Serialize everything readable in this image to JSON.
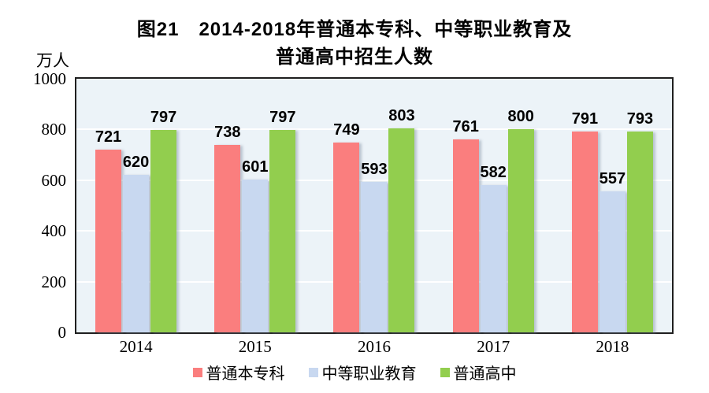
{
  "figure": {
    "title_line1": "图21　2014-2018年普通本专科、中等职业教育及",
    "title_line2": "普通高中招生人数",
    "unit_label": "万人"
  },
  "chart_data": {
    "type": "bar",
    "title": "图21 2014-2018年普通本专科、中等职业教育及普通高中招生人数",
    "ylabel": "万人",
    "xlabel": "",
    "categories": [
      "2014",
      "2015",
      "2016",
      "2017",
      "2018"
    ],
    "series": [
      {
        "name": "普通本专科",
        "color": "#FA7E7E",
        "values": [
          721,
          738,
          749,
          761,
          791
        ]
      },
      {
        "name": "中等职业教育",
        "color": "#C8D8F0",
        "values": [
          620,
          601,
          593,
          582,
          557
        ]
      },
      {
        "name": "普通高中",
        "color": "#92CE4E",
        "values": [
          797,
          797,
          803,
          800,
          793
        ]
      }
    ],
    "ylim": [
      0,
      1000
    ],
    "yticks": [
      0,
      200,
      400,
      600,
      800,
      1000
    ],
    "grid": true,
    "gridline_color": "#FFFFFF",
    "data_labels": true,
    "legend_position": "bottom",
    "plot_background": "#ECF3F8"
  }
}
